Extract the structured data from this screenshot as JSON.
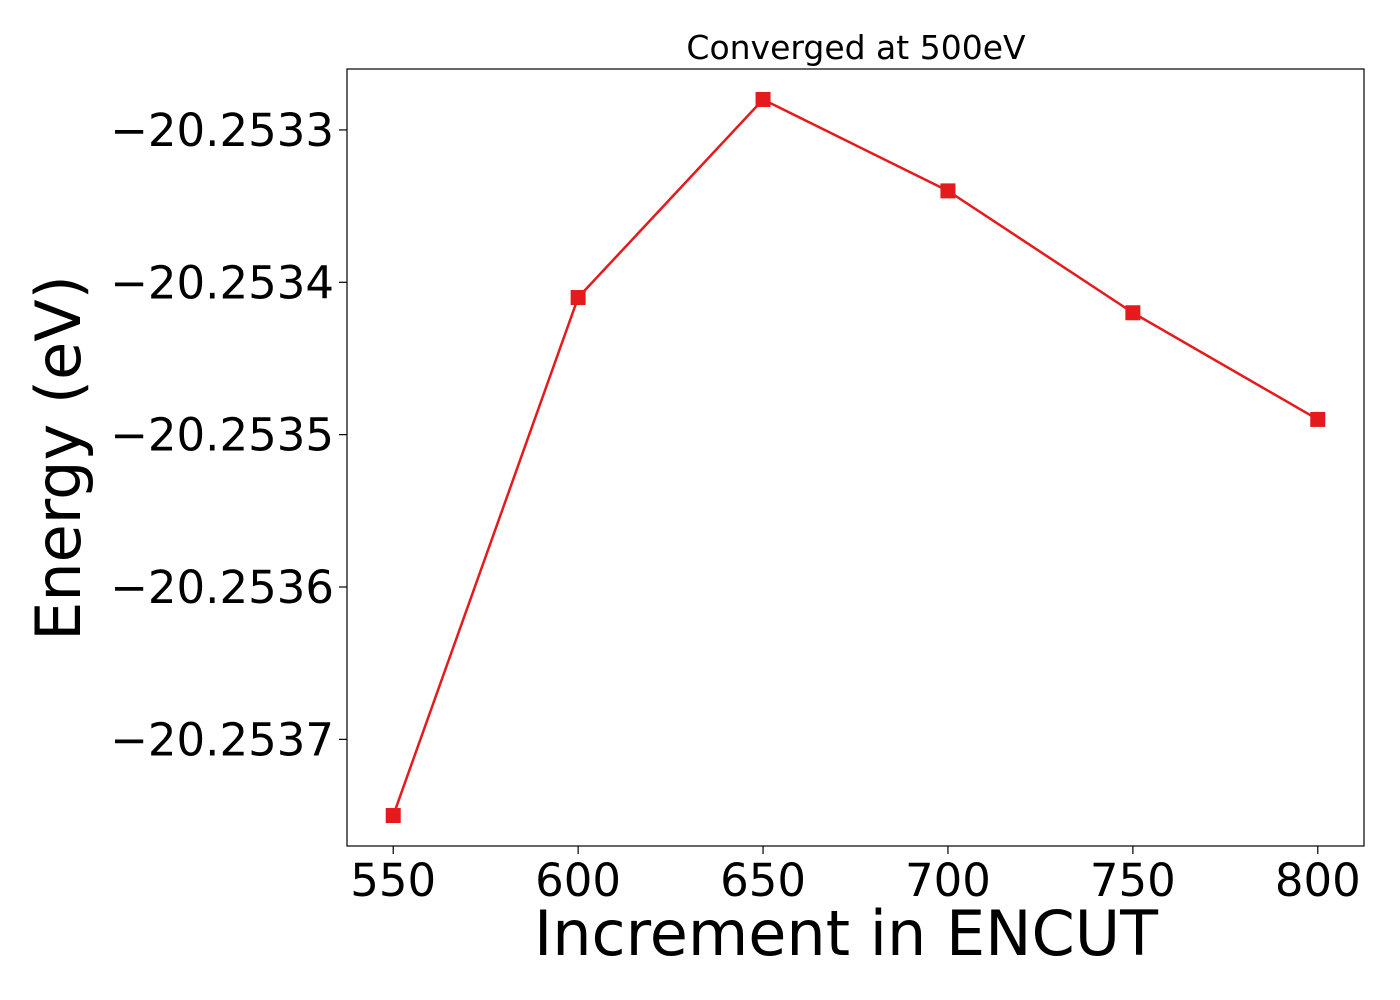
{
  "chart_data": {
    "type": "line",
    "title": "Converged at 500eV",
    "xlabel": "Increment in ENCUT",
    "ylabel": "Energy (eV)",
    "x": [
      550,
      600,
      650,
      700,
      750,
      800
    ],
    "series": [
      {
        "values": [
          -20.25375,
          -20.25341,
          -20.25328,
          -20.25334,
          -20.25342,
          -20.25349
        ],
        "color": "#e41a1c",
        "marker": "square"
      }
    ],
    "xticks": [
      550,
      600,
      650,
      700,
      750,
      800
    ],
    "xtick_labels": [
      "550",
      "600",
      "650",
      "700",
      "750",
      "800"
    ],
    "yticks": [
      -20.2533,
      -20.2534,
      -20.2535,
      -20.2536,
      -20.2537
    ],
    "ytick_labels": [
      "−20.2533",
      "−20.2534",
      "−20.2535",
      "−20.2536",
      "−20.2537"
    ],
    "xlim": [
      537.5,
      812.5
    ],
    "ylim": [
      -20.25377,
      -20.25326
    ],
    "grid": false,
    "legend": false
  }
}
